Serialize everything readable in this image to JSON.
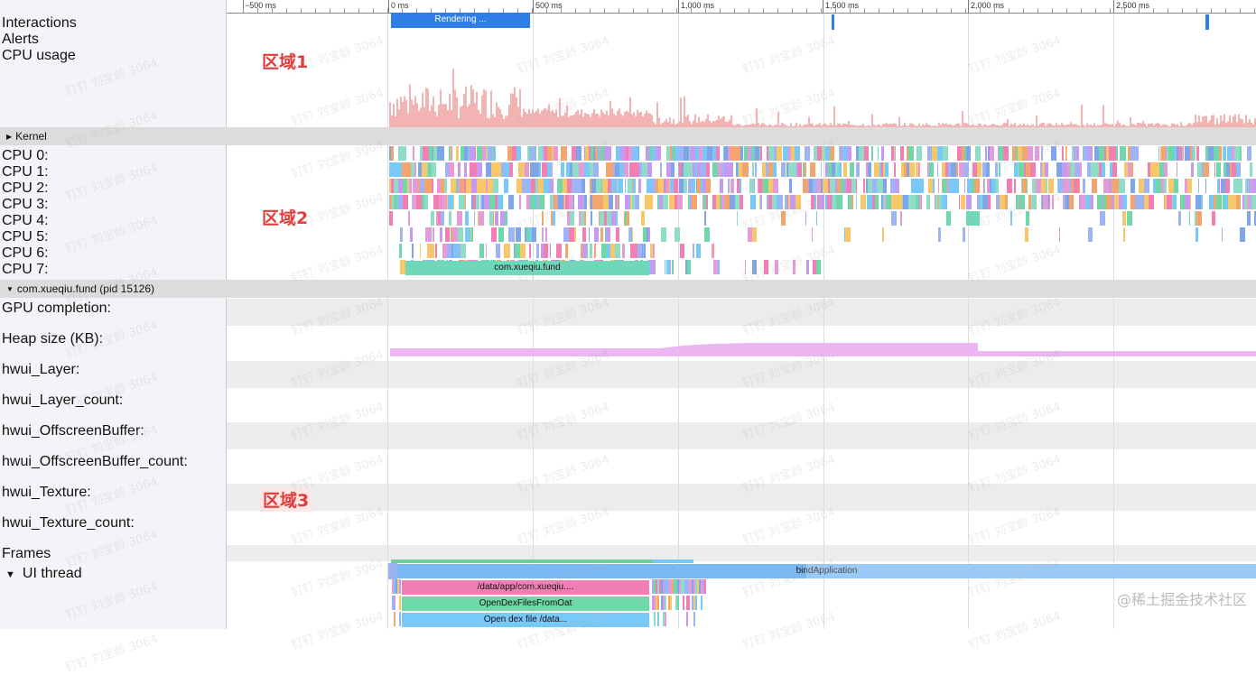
{
  "left_panel": {
    "rows_top": [
      "Interactions",
      "Alerts",
      "CPU usage"
    ],
    "kernel_header": "Kernel",
    "cpu_rows": [
      "CPU 0:",
      "CPU 1:",
      "CPU 2:",
      "CPU 3:",
      "CPU 4:",
      "CPU 5:",
      "CPU 6:",
      "CPU 7:"
    ],
    "process_header": "com.xueqiu.fund (pid 15126)",
    "process_rows": [
      "GPU completion:",
      "Heap size (KB):",
      "hwui_Layer:",
      "hwui_Layer_count:",
      "hwui_OffscreenBuffer:",
      "hwui_OffscreenBuffer_count:",
      "hwui_Texture:",
      "hwui_Texture_count:",
      "Frames"
    ],
    "ui_thread": "UI thread"
  },
  "ruler": {
    "ticks": [
      "−500 ms",
      "0 ms",
      "500 ms",
      "1,000 ms",
      "1,500 ms",
      "2,000 ms",
      "2,500 ms"
    ]
  },
  "annotations": {
    "region1": "区域1",
    "region2": "区域2",
    "region3": "区域3"
  },
  "slices": {
    "rendering": "Rendering ...",
    "process_slice": "com.xueqiu.fund",
    "bind_application": "bindApplication",
    "data_app": "/data/app/com.xueqiu....",
    "open_dex_oat": "OpenDexFilesFromOat",
    "open_dex_file": "Open dex file /data..."
  },
  "watermark": "钉钉 刘宝龄 3064",
  "credit": "@稀土掘金技术社区",
  "colors": {
    "rendering": "#2f7de8",
    "cpu_usage": "#f4b3b3",
    "heap": "#ebb6f2",
    "process_slice": "#6fd8b8",
    "bind": "#78b8f4",
    "data_app": "#f27fb3",
    "oat": "#6fd8a8",
    "dexfile": "#78c8f8",
    "region_text": "#e23b3b"
  }
}
